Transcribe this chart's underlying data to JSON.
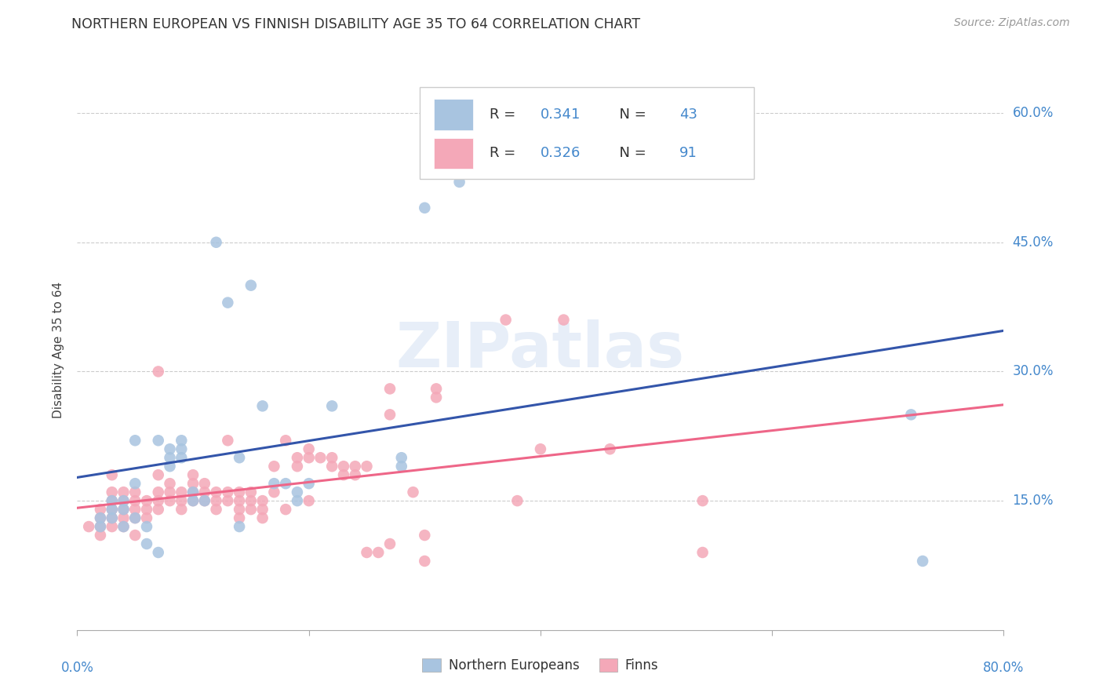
{
  "title": "NORTHERN EUROPEAN VS FINNISH DISABILITY AGE 35 TO 64 CORRELATION CHART",
  "source": "Source: ZipAtlas.com",
  "ylabel": "Disability Age 35 to 64",
  "xlim": [
    0.0,
    0.8
  ],
  "ylim": [
    0.0,
    0.65
  ],
  "yticks": [
    0.15,
    0.3,
    0.45,
    0.6
  ],
  "ytick_labels": [
    "15.0%",
    "30.0%",
    "45.0%",
    "60.0%"
  ],
  "blue_color": "#A8C4E0",
  "pink_color": "#F4A8B8",
  "blue_line_color": "#3355AA",
  "pink_line_color": "#EE6688",
  "axis_label_color": "#4488CC",
  "background_color": "#FFFFFF",
  "blue_points": [
    [
      0.02,
      0.12
    ],
    [
      0.02,
      0.13
    ],
    [
      0.03,
      0.13
    ],
    [
      0.03,
      0.14
    ],
    [
      0.03,
      0.15
    ],
    [
      0.04,
      0.12
    ],
    [
      0.04,
      0.14
    ],
    [
      0.04,
      0.15
    ],
    [
      0.05,
      0.13
    ],
    [
      0.05,
      0.17
    ],
    [
      0.05,
      0.22
    ],
    [
      0.06,
      0.1
    ],
    [
      0.06,
      0.12
    ],
    [
      0.07,
      0.09
    ],
    [
      0.07,
      0.22
    ],
    [
      0.08,
      0.19
    ],
    [
      0.08,
      0.2
    ],
    [
      0.08,
      0.21
    ],
    [
      0.09,
      0.2
    ],
    [
      0.09,
      0.21
    ],
    [
      0.09,
      0.22
    ],
    [
      0.1,
      0.15
    ],
    [
      0.1,
      0.16
    ],
    [
      0.11,
      0.15
    ],
    [
      0.12,
      0.45
    ],
    [
      0.13,
      0.38
    ],
    [
      0.14,
      0.12
    ],
    [
      0.14,
      0.2
    ],
    [
      0.15,
      0.4
    ],
    [
      0.16,
      0.26
    ],
    [
      0.17,
      0.17
    ],
    [
      0.18,
      0.17
    ],
    [
      0.19,
      0.15
    ],
    [
      0.19,
      0.16
    ],
    [
      0.2,
      0.17
    ],
    [
      0.22,
      0.26
    ],
    [
      0.28,
      0.19
    ],
    [
      0.28,
      0.2
    ],
    [
      0.3,
      0.49
    ],
    [
      0.33,
      0.52
    ],
    [
      0.35,
      0.55
    ],
    [
      0.72,
      0.25
    ],
    [
      0.73,
      0.08
    ]
  ],
  "pink_points": [
    [
      0.01,
      0.12
    ],
    [
      0.02,
      0.11
    ],
    [
      0.02,
      0.12
    ],
    [
      0.02,
      0.13
    ],
    [
      0.02,
      0.14
    ],
    [
      0.03,
      0.12
    ],
    [
      0.03,
      0.13
    ],
    [
      0.03,
      0.14
    ],
    [
      0.03,
      0.15
    ],
    [
      0.03,
      0.16
    ],
    [
      0.03,
      0.18
    ],
    [
      0.04,
      0.12
    ],
    [
      0.04,
      0.13
    ],
    [
      0.04,
      0.14
    ],
    [
      0.04,
      0.15
    ],
    [
      0.04,
      0.16
    ],
    [
      0.05,
      0.11
    ],
    [
      0.05,
      0.13
    ],
    [
      0.05,
      0.14
    ],
    [
      0.05,
      0.15
    ],
    [
      0.05,
      0.16
    ],
    [
      0.06,
      0.13
    ],
    [
      0.06,
      0.14
    ],
    [
      0.06,
      0.15
    ],
    [
      0.07,
      0.14
    ],
    [
      0.07,
      0.15
    ],
    [
      0.07,
      0.16
    ],
    [
      0.07,
      0.18
    ],
    [
      0.07,
      0.3
    ],
    [
      0.08,
      0.15
    ],
    [
      0.08,
      0.16
    ],
    [
      0.08,
      0.17
    ],
    [
      0.09,
      0.14
    ],
    [
      0.09,
      0.15
    ],
    [
      0.09,
      0.16
    ],
    [
      0.1,
      0.15
    ],
    [
      0.1,
      0.16
    ],
    [
      0.1,
      0.17
    ],
    [
      0.1,
      0.18
    ],
    [
      0.11,
      0.15
    ],
    [
      0.11,
      0.16
    ],
    [
      0.11,
      0.17
    ],
    [
      0.12,
      0.14
    ],
    [
      0.12,
      0.15
    ],
    [
      0.12,
      0.16
    ],
    [
      0.13,
      0.15
    ],
    [
      0.13,
      0.16
    ],
    [
      0.13,
      0.22
    ],
    [
      0.14,
      0.13
    ],
    [
      0.14,
      0.14
    ],
    [
      0.14,
      0.15
    ],
    [
      0.14,
      0.16
    ],
    [
      0.15,
      0.15
    ],
    [
      0.15,
      0.14
    ],
    [
      0.15,
      0.16
    ],
    [
      0.16,
      0.13
    ],
    [
      0.16,
      0.14
    ],
    [
      0.16,
      0.15
    ],
    [
      0.17,
      0.16
    ],
    [
      0.17,
      0.19
    ],
    [
      0.18,
      0.14
    ],
    [
      0.18,
      0.22
    ],
    [
      0.19,
      0.19
    ],
    [
      0.19,
      0.2
    ],
    [
      0.2,
      0.15
    ],
    [
      0.2,
      0.2
    ],
    [
      0.2,
      0.21
    ],
    [
      0.21,
      0.2
    ],
    [
      0.22,
      0.19
    ],
    [
      0.22,
      0.2
    ],
    [
      0.23,
      0.18
    ],
    [
      0.23,
      0.19
    ],
    [
      0.24,
      0.18
    ],
    [
      0.24,
      0.19
    ],
    [
      0.25,
      0.09
    ],
    [
      0.25,
      0.19
    ],
    [
      0.26,
      0.09
    ],
    [
      0.27,
      0.1
    ],
    [
      0.27,
      0.25
    ],
    [
      0.27,
      0.28
    ],
    [
      0.29,
      0.16
    ],
    [
      0.3,
      0.08
    ],
    [
      0.3,
      0.11
    ],
    [
      0.31,
      0.27
    ],
    [
      0.31,
      0.28
    ],
    [
      0.37,
      0.36
    ],
    [
      0.38,
      0.15
    ],
    [
      0.4,
      0.21
    ],
    [
      0.42,
      0.36
    ],
    [
      0.46,
      0.21
    ],
    [
      0.54,
      0.15
    ],
    [
      0.54,
      0.09
    ]
  ]
}
